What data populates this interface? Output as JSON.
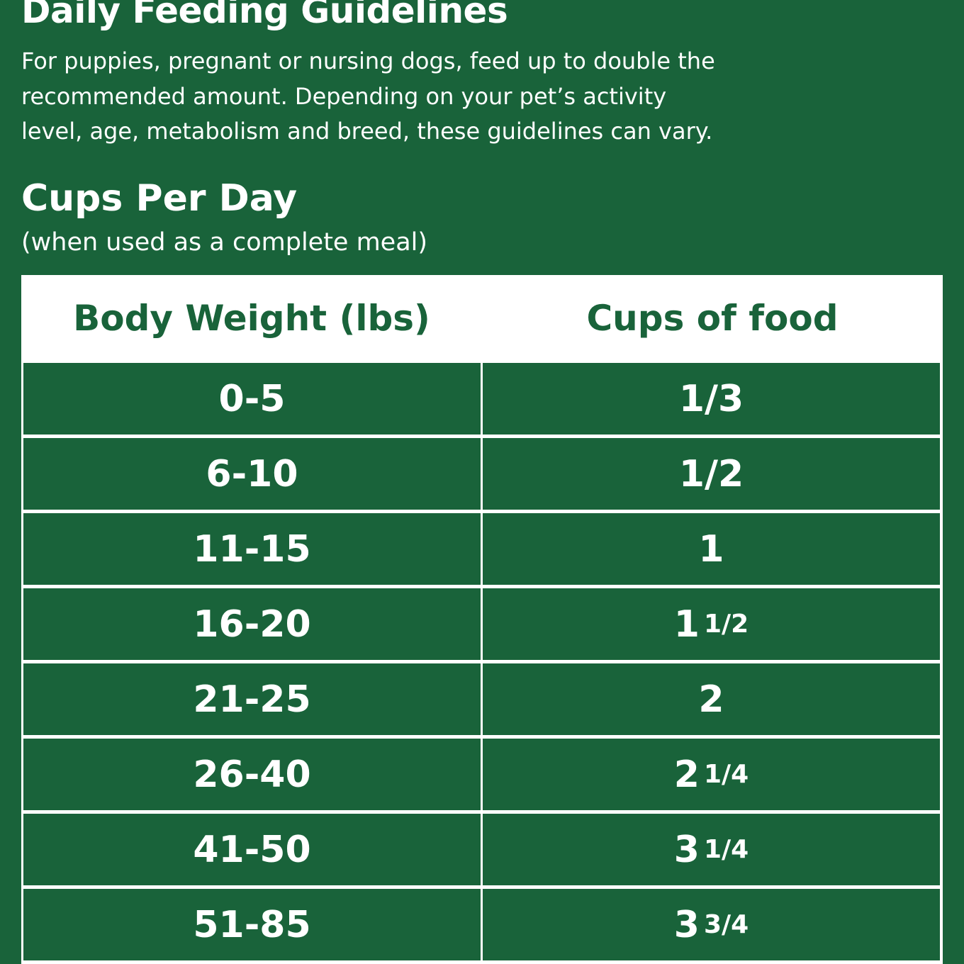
{
  "header": {
    "title": "Daily Feeding Guidelines",
    "intro_lines": [
      "For puppies, pregnant or nursing dogs, feed up to double the",
      "recommended amount. Depending on your pet’s activity",
      "level, age, metabolism and breed, these guidelines can vary."
    ]
  },
  "section": {
    "title": "Cups Per Day",
    "subtitle": "(when used as a complete meal)"
  },
  "table": {
    "columns": [
      "Body Weight (lbs)",
      "Cups of food"
    ],
    "rows": [
      [
        "0-5",
        "1/3"
      ],
      [
        "6-10",
        "1/2"
      ],
      [
        "11-15",
        "1"
      ],
      [
        "16-20",
        "1 1/2"
      ],
      [
        "21-25",
        "2"
      ],
      [
        "26-40",
        "2 1/4"
      ],
      [
        "41-50",
        "3 1/4"
      ],
      [
        "51-85",
        "3 3/4"
      ]
    ]
  }
}
